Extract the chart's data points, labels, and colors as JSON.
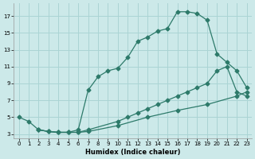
{
  "xlabel": "Humidex (Indice chaleur)",
  "bg_color": "#cce9e9",
  "grid_color": "#aad4d4",
  "line_color": "#2d7a6a",
  "xlim": [
    -0.5,
    23.5
  ],
  "ylim": [
    2.5,
    18.5
  ],
  "xticks": [
    0,
    1,
    2,
    3,
    4,
    5,
    6,
    7,
    8,
    9,
    10,
    11,
    12,
    13,
    14,
    15,
    16,
    17,
    18,
    19,
    20,
    21,
    22,
    23
  ],
  "yticks": [
    3,
    5,
    7,
    9,
    11,
    13,
    15,
    17
  ],
  "curve1_x": [
    0,
    1,
    2,
    3,
    4,
    5,
    6,
    7,
    8,
    9,
    10,
    11,
    12,
    13,
    14,
    15,
    16,
    17,
    18,
    19,
    20,
    21,
    22,
    23
  ],
  "curve1_y": [
    5,
    4.5,
    3.5,
    3.3,
    3.2,
    3.2,
    3.5,
    8.2,
    9.8,
    10.5,
    10.8,
    12.1,
    14.0,
    14.5,
    15.2,
    15.5,
    17.5,
    17.5,
    17.3,
    16.5,
    12.5,
    11.5,
    10.5,
    8.5
  ],
  "curve2_x": [
    2,
    3,
    4,
    5,
    6,
    7,
    10,
    11,
    12,
    13,
    14,
    15,
    16,
    17,
    18,
    19,
    20,
    21,
    22,
    23
  ],
  "curve2_y": [
    3.5,
    3.3,
    3.2,
    3.2,
    3.2,
    3.5,
    4.5,
    5.0,
    5.5,
    6.0,
    6.5,
    7.0,
    7.5,
    8.0,
    8.5,
    9.0,
    10.5,
    11.0,
    8.0,
    7.5
  ],
  "curve3_x": [
    2,
    3,
    4,
    5,
    6,
    7,
    10,
    13,
    16,
    19,
    22,
    23
  ],
  "curve3_y": [
    3.5,
    3.3,
    3.2,
    3.2,
    3.2,
    3.3,
    4.0,
    5.0,
    5.8,
    6.5,
    7.5,
    8.0
  ],
  "markersize": 2.5
}
